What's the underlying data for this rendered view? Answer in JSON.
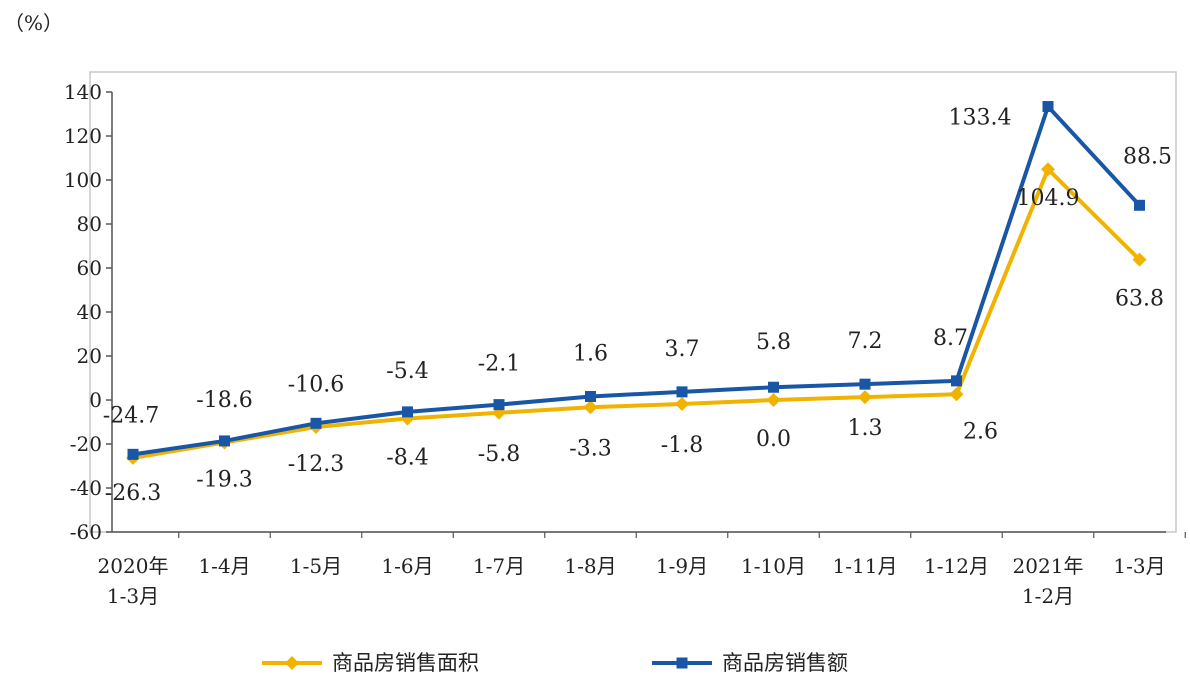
{
  "chart_data": {
    "type": "line",
    "unit_label": "（%）",
    "categories": [
      [
        "2020年",
        "1-3月"
      ],
      [
        "1-4月"
      ],
      [
        "1-5月"
      ],
      [
        "1-6月"
      ],
      [
        "1-7月"
      ],
      [
        "1-8月"
      ],
      [
        "1-9月"
      ],
      [
        "1-10月"
      ],
      [
        "1-11月"
      ],
      [
        "1-12月"
      ],
      [
        "2021年",
        "1-2月"
      ],
      [
        "1-3月"
      ]
    ],
    "y_ticks": [
      -60,
      -40,
      -20,
      0,
      20,
      40,
      60,
      80,
      100,
      120,
      140
    ],
    "ylim": [
      -60,
      150
    ],
    "series": [
      {
        "name": "商品房销售面积",
        "color": "#f0b400",
        "marker": "diamond",
        "values": [
          -26.3,
          -19.3,
          -12.3,
          -8.4,
          -5.8,
          -3.3,
          -1.8,
          0.0,
          1.3,
          2.6,
          104.9,
          63.8
        ],
        "labels": [
          "-26.3",
          "-19.3",
          "-12.3",
          "-8.4",
          "-5.8",
          "-3.3",
          "-1.8",
          "0.0",
          "1.3",
          "2.6",
          "104.9",
          "63.8"
        ]
      },
      {
        "name": "商品房销售额",
        "color": "#1a56a6",
        "marker": "square",
        "values": [
          -24.7,
          -18.6,
          -10.6,
          -5.4,
          -2.1,
          1.6,
          3.7,
          5.8,
          7.2,
          8.7,
          133.4,
          88.5
        ],
        "labels": [
          "-24.7",
          "-18.6",
          "-10.6",
          "-5.4",
          "-2.1",
          "1.6",
          "3.7",
          "5.8",
          "7.2",
          "8.7",
          "133.4",
          "88.5"
        ]
      }
    ],
    "legend_position": "bottom",
    "grid": false
  }
}
